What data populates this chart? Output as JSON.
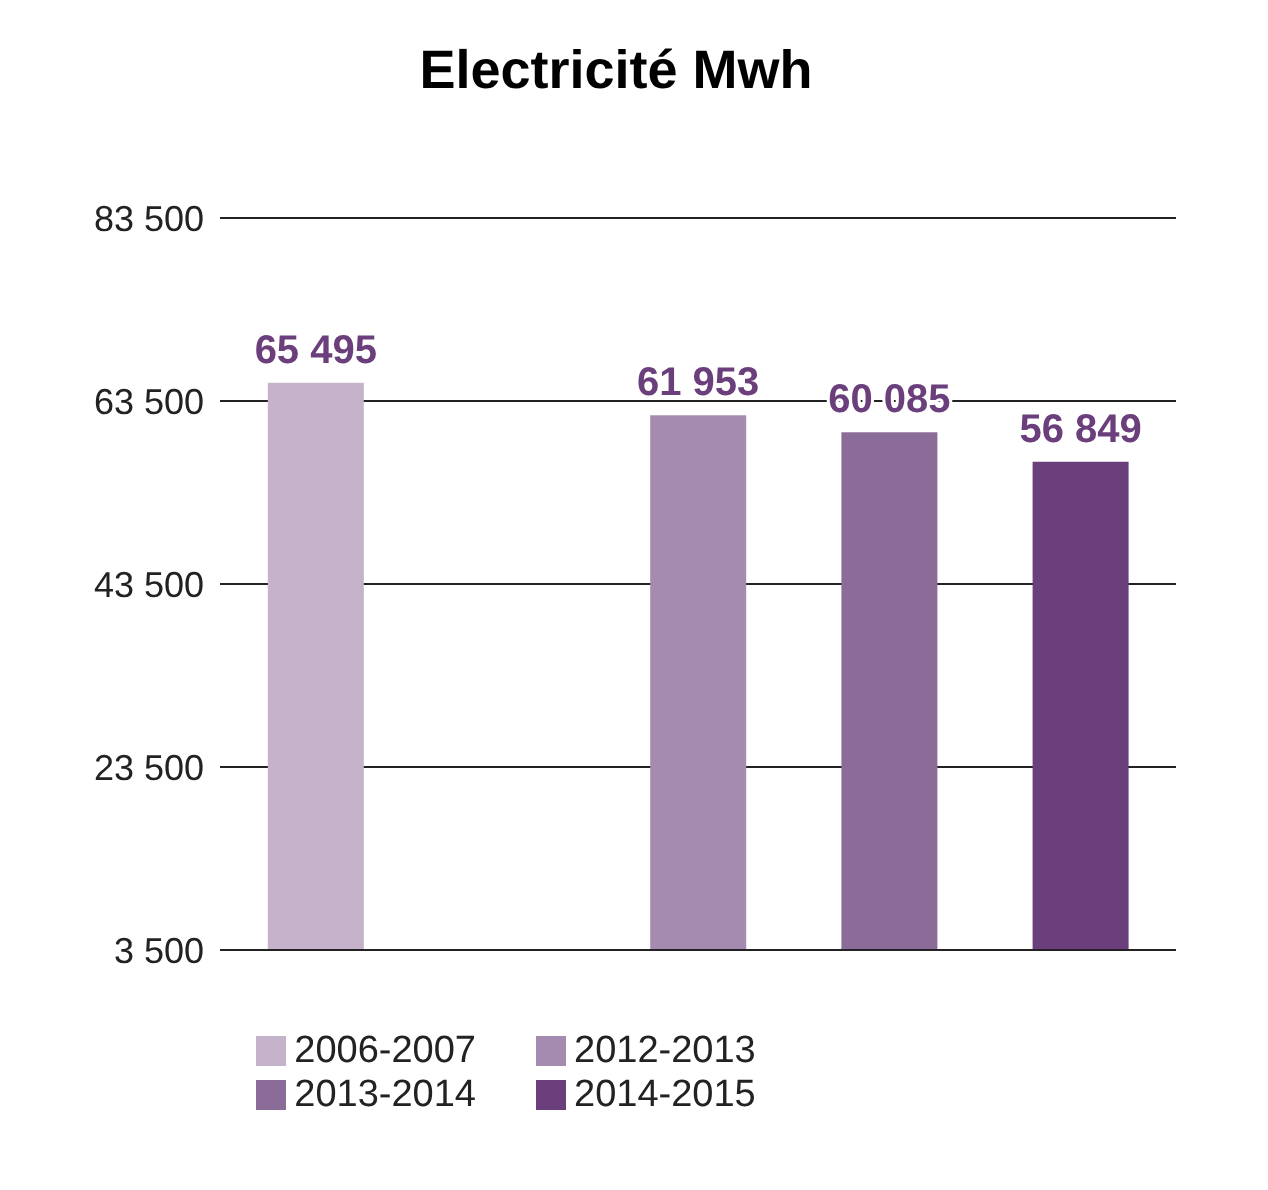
{
  "chart_data": {
    "type": "bar",
    "title": "Electricité Mwh",
    "categories": [
      null,
      null,
      null,
      null,
      null
    ],
    "stacked": true,
    "series": [
      {
        "name": "2006-2007",
        "color": "#c5b3cc",
        "values": [
          65495,
          null,
          null,
          null,
          null
        ],
        "value_labels": [
          "65 495",
          null,
          null,
          null,
          null
        ]
      },
      {
        "name": "2012-2013",
        "color": "#a58bb0",
        "values": [
          null,
          null,
          61953,
          null,
          null
        ],
        "value_labels": [
          null,
          null,
          "61 953",
          null,
          null
        ]
      },
      {
        "name": "2013-2014",
        "color": "#8b6c98",
        "values": [
          null,
          null,
          null,
          60085,
          null
        ],
        "value_labels": [
          null,
          null,
          null,
          "60 085",
          null
        ]
      },
      {
        "name": "2014-2015",
        "color": "#6a3f7c",
        "values": [
          null,
          null,
          null,
          null,
          56849
        ],
        "value_labels": [
          null,
          null,
          null,
          null,
          "56 849"
        ]
      }
    ],
    "ylim": [
      3500,
      83500
    ],
    "yticks": [
      {
        "value": 3500,
        "label": "3 500"
      },
      {
        "value": 23500,
        "label": "23 500"
      },
      {
        "value": 43500,
        "label": "43 500"
      },
      {
        "value": 63500,
        "label": "63 500"
      },
      {
        "value": 83500,
        "label": "83 500"
      }
    ],
    "grid": "y",
    "legend": "bottom"
  }
}
